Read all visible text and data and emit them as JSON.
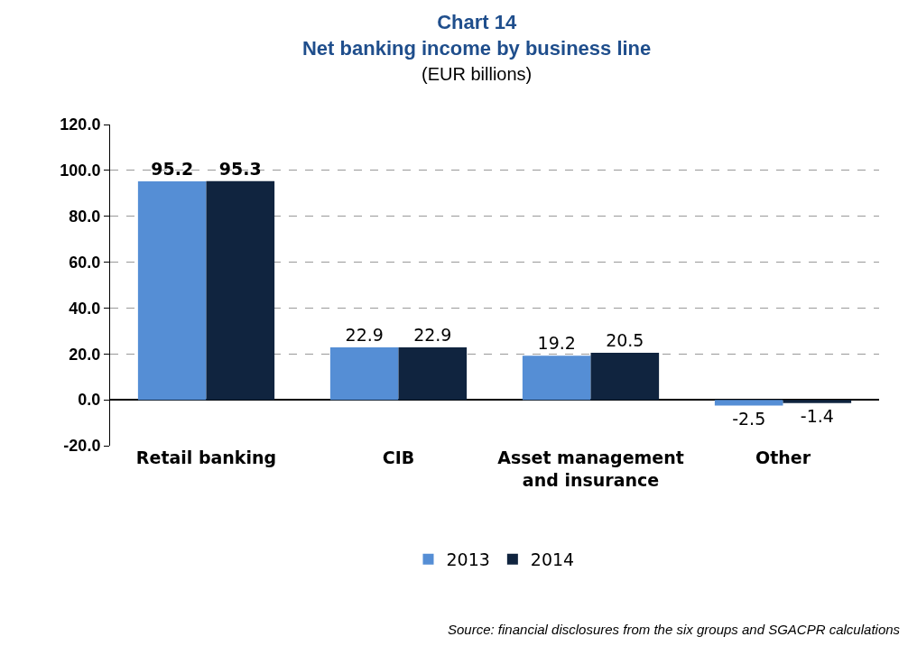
{
  "chart_data": {
    "type": "bar",
    "title": "Chart 14",
    "subtitle": "Net banking income by business line",
    "ylabel": "(EUR billions)",
    "categories": [
      "Retail banking",
      "CIB",
      "Asset management and insurance",
      "Other"
    ],
    "series": [
      {
        "name": "2013",
        "color": "#558ed5",
        "values": [
          95.2,
          22.9,
          19.2,
          -2.5
        ]
      },
      {
        "name": "2014",
        "color": "#10243f",
        "values": [
          95.3,
          22.9,
          20.5,
          -1.4
        ]
      }
    ],
    "ylim": [
      -20,
      120
    ],
    "yticks": [
      {
        "value": -20,
        "label": "-20.0"
      },
      {
        "value": 0,
        "label": "0.0"
      },
      {
        "value": 20,
        "label": "20.0"
      },
      {
        "value": 40,
        "label": "40.0"
      },
      {
        "value": 60,
        "label": "60.0"
      },
      {
        "value": 80,
        "label": "80.0"
      },
      {
        "value": 100,
        "label": "100.0"
      },
      {
        "value": 120,
        "label": "120.0"
      }
    ],
    "grid": "y",
    "legend": "bottom",
    "data_labels": true,
    "annotations": [
      "Source: financial disclosures from the six groups and SGACPR calculations"
    ]
  }
}
